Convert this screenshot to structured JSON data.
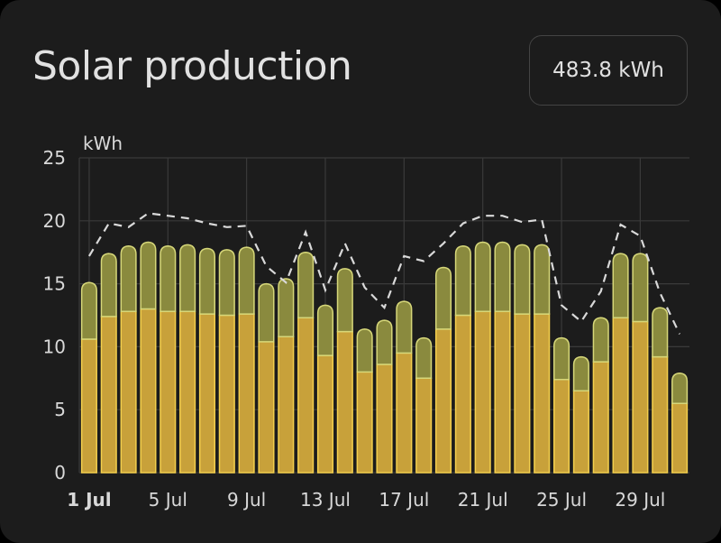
{
  "card": {
    "title": "Solar production",
    "total": "483.8 kWh"
  },
  "colors": {
    "background": "#1c1c1c",
    "grid": "#3a3a3a",
    "bar_fill": "#c8a13a",
    "bar_stroke": "#f3cf4d",
    "forecast_fill": "#8a8a3e",
    "forecast_stroke": "#d6d779",
    "dashed_line": "#d9d9d9"
  },
  "chart_data": {
    "type": "bar",
    "ylabel": "kWh",
    "ylim": [
      0,
      25
    ],
    "yticks": [
      0,
      5,
      10,
      15,
      20,
      25
    ],
    "grid": true,
    "categories": [
      "1 Jul",
      "2 Jul",
      "3 Jul",
      "4 Jul",
      "5 Jul",
      "6 Jul",
      "7 Jul",
      "8 Jul",
      "9 Jul",
      "10 Jul",
      "11 Jul",
      "12 Jul",
      "13 Jul",
      "14 Jul",
      "15 Jul",
      "16 Jul",
      "17 Jul",
      "18 Jul",
      "19 Jul",
      "20 Jul",
      "21 Jul",
      "22 Jul",
      "23 Jul",
      "24 Jul",
      "25 Jul",
      "26 Jul",
      "27 Jul",
      "28 Jul",
      "29 Jul",
      "30 Jul",
      "31 Jul"
    ],
    "xtick_labels": [
      {
        "day": 1,
        "label": "1 Jul",
        "bold": true
      },
      {
        "day": 5,
        "label": "5 Jul"
      },
      {
        "day": 9,
        "label": "9 Jul"
      },
      {
        "day": 13,
        "label": "13 Jul"
      },
      {
        "day": 17,
        "label": "17 Jul"
      },
      {
        "day": 21,
        "label": "21 Jul"
      },
      {
        "day": 25,
        "label": "25 Jul"
      },
      {
        "day": 29,
        "label": "29 Jul"
      }
    ],
    "series": [
      {
        "values": [
          10.6,
          12.4,
          12.8,
          13.0,
          12.8,
          12.8,
          12.6,
          12.5,
          12.6,
          10.4,
          10.8,
          12.3,
          9.3,
          11.2,
          8.0,
          8.6,
          9.5,
          7.5,
          11.4,
          12.5,
          12.8,
          12.8,
          12.6,
          12.6,
          7.4,
          6.5,
          8.8,
          12.3,
          12.0,
          9.2,
          5.5
        ]
      },
      {
        "values": [
          15.1,
          17.4,
          18.0,
          18.3,
          18.0,
          18.1,
          17.8,
          17.7,
          17.9,
          15.0,
          15.4,
          17.5,
          13.3,
          16.2,
          11.4,
          12.1,
          13.6,
          10.7,
          16.3,
          18.0,
          18.3,
          18.3,
          18.1,
          18.1,
          10.7,
          9.2,
          12.3,
          17.4,
          17.4,
          13.1,
          7.9
        ]
      },
      {
        "values": [
          17.2,
          19.8,
          19.5,
          20.6,
          20.4,
          20.2,
          19.8,
          19.5,
          19.6,
          16.4,
          15.1,
          19.1,
          14.5,
          18.2,
          14.7,
          13.1,
          17.2,
          16.8,
          18.2,
          19.8,
          20.4,
          20.4,
          19.9,
          20.1,
          13.3,
          12.0,
          14.4,
          19.7,
          18.8,
          14.3,
          11.0
        ]
      }
    ]
  }
}
